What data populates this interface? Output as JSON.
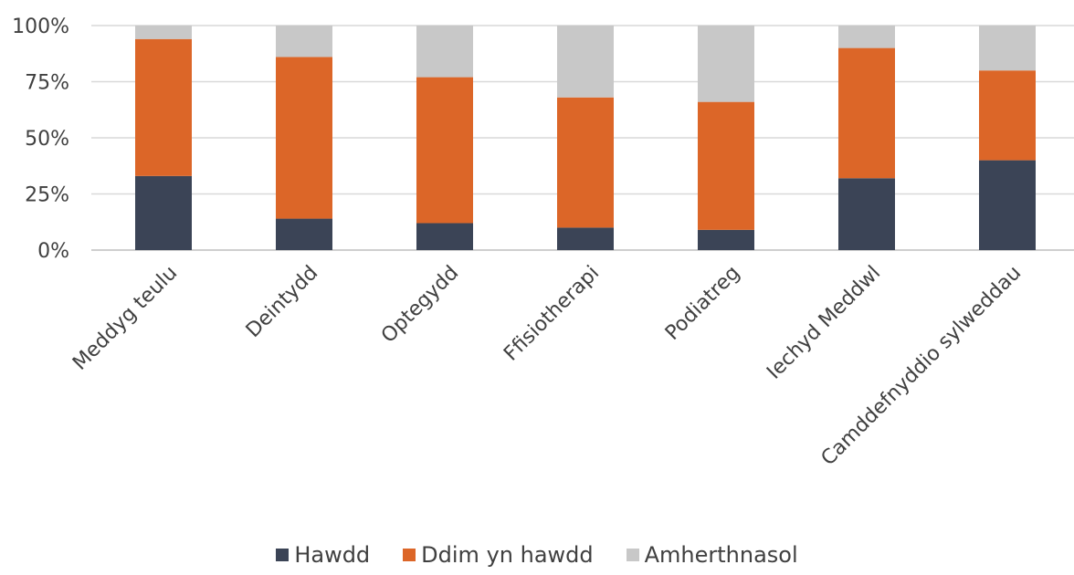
{
  "chart_data": {
    "type": "bar",
    "stacked": true,
    "categories": [
      "Meddyg teulu",
      "Deintydd",
      "Optegydd",
      "Ffisiotherapi",
      "Podiatreg",
      "Iechyd Meddwl",
      "Camddefnyddio sylweddau"
    ],
    "series": [
      {
        "name": "Hawdd",
        "color": "#3b4456",
        "values": [
          33,
          14,
          12,
          10,
          9,
          32,
          40
        ]
      },
      {
        "name": "Ddim yn hawdd",
        "color": "#dc6628",
        "values": [
          61,
          72,
          65,
          58,
          57,
          58,
          40
        ]
      },
      {
        "name": "Amherthnasol",
        "color": "#c8c8c8",
        "values": [
          6,
          14,
          23,
          32,
          34,
          10,
          20
        ]
      }
    ],
    "ylim": [
      0,
      100
    ],
    "yticks": [
      "0%",
      "25%",
      "50%",
      "75%",
      "100%"
    ],
    "ytick_values": [
      0,
      25,
      50,
      75,
      100
    ],
    "grid": true,
    "legend_position": "bottom"
  }
}
